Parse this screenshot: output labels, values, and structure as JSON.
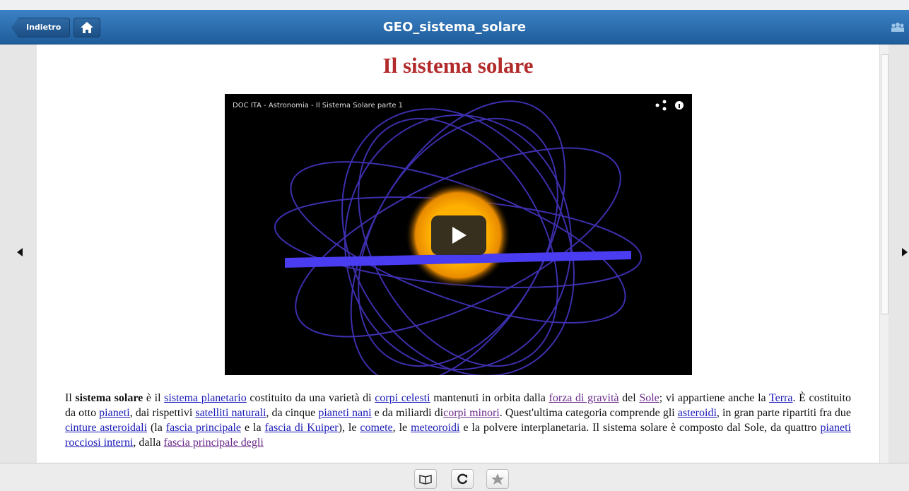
{
  "header": {
    "back": "Indietro",
    "title": "GEO_sistema_solare"
  },
  "article": {
    "heading": "Il sistema solare",
    "video": {
      "title": "DOC ITA - Astronomia - Il Sistema Solare parte 1"
    },
    "paragraph": [
      {
        "text": "Il ",
        "style": "plain"
      },
      {
        "text": "sistema solare",
        "style": "bold"
      },
      {
        "text": " è il ",
        "style": "plain"
      },
      {
        "text": "sistema planetario",
        "style": "link"
      },
      {
        "text": " costituito da una varietà di ",
        "style": "plain"
      },
      {
        "text": "corpi celesti",
        "style": "link"
      },
      {
        "text": " mantenuti in orbita dalla ",
        "style": "plain"
      },
      {
        "text": "forza di gravità",
        "style": "visited"
      },
      {
        "text": " del ",
        "style": "plain"
      },
      {
        "text": "Sole",
        "style": "visited"
      },
      {
        "text": "; vi appartiene anche la ",
        "style": "plain"
      },
      {
        "text": "Terra",
        "style": "link"
      },
      {
        "text": ". È costituito da otto ",
        "style": "plain"
      },
      {
        "text": "pianeti",
        "style": "link"
      },
      {
        "text": ", dai rispettivi ",
        "style": "plain"
      },
      {
        "text": "satelliti naturali",
        "style": "link"
      },
      {
        "text": ", da cinque ",
        "style": "plain"
      },
      {
        "text": "pianeti nani",
        "style": "link"
      },
      {
        "text": " e da miliardi di",
        "style": "plain"
      },
      {
        "text": "corpi minori",
        "style": "visited"
      },
      {
        "text": ". Quest'ultima categoria comprende gli ",
        "style": "plain"
      },
      {
        "text": "asteroidi",
        "style": "link"
      },
      {
        "text": ", in gran parte ripartiti fra due ",
        "style": "plain"
      },
      {
        "text": "cinture asteroidali",
        "style": "link"
      },
      {
        "text": " (la ",
        "style": "plain"
      },
      {
        "text": "fascia principale",
        "style": "link"
      },
      {
        "text": " e la ",
        "style": "plain"
      },
      {
        "text": "fascia di Kuiper",
        "style": "link"
      },
      {
        "text": "), le ",
        "style": "plain"
      },
      {
        "text": "comete",
        "style": "link"
      },
      {
        "text": ", le ",
        "style": "plain"
      },
      {
        "text": "meteoroidi",
        "style": "link"
      },
      {
        "text": " e la polvere interplanetaria. Il sistema solare è composto dal Sole, da quattro ",
        "style": "plain"
      },
      {
        "text": "pianeti rocciosi interni",
        "style": "link"
      },
      {
        "text": ", dalla ",
        "style": "plain"
      },
      {
        "text": "fascia principale degli",
        "style": "visited"
      }
    ]
  }
}
